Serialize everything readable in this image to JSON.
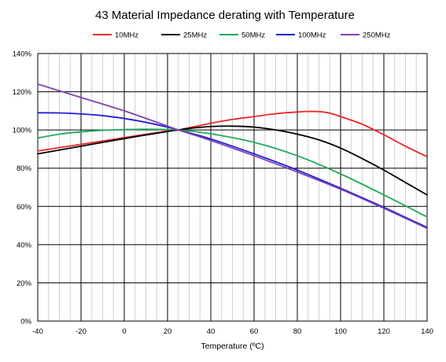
{
  "chart_data": {
    "type": "line",
    "title": "43 Material Impedance derating with Temperature",
    "xlabel": "Temperature (ºC)",
    "ylabel": "",
    "xlim": [
      -40,
      140
    ],
    "ylim": [
      0,
      140
    ],
    "x_ticks": [
      -40,
      -20,
      0,
      20,
      40,
      60,
      80,
      100,
      120,
      140
    ],
    "x_tick_labels": [
      "-40",
      "-20",
      "0",
      "20",
      "40",
      "60",
      "80",
      "100",
      "120",
      "140"
    ],
    "y_ticks": [
      0,
      20,
      40,
      60,
      80,
      100,
      120,
      140
    ],
    "y_tick_labels": [
      "0%",
      "20%",
      "40%",
      "60%",
      "80%",
      "100%",
      "120%",
      "140%"
    ],
    "x_minor_step": 5,
    "grid": true,
    "legend_position": "top",
    "series": [
      {
        "name": "10MHz",
        "color": "#e8282a",
        "x": [
          -40,
          -20,
          0,
          20,
          25,
          40,
          50,
          60,
          70,
          80,
          85,
          90,
          95,
          100,
          110,
          120,
          130,
          140
        ],
        "y": [
          89,
          92.5,
          96,
          99.5,
          100,
          103.5,
          105.5,
          107,
          108.5,
          109.4,
          109.7,
          109.6,
          108.8,
          107,
          103,
          97.5,
          91.5,
          86
        ]
      },
      {
        "name": "25MHz",
        "color": "#000000",
        "x": [
          -40,
          -20,
          0,
          20,
          25,
          30,
          40,
          50,
          60,
          70,
          80,
          90,
          100,
          110,
          120,
          130,
          140
        ],
        "y": [
          87.5,
          91.5,
          95.5,
          99.2,
          100,
          100.8,
          101.8,
          102,
          101.5,
          100,
          97.8,
          94.8,
          90.5,
          85,
          79,
          72.5,
          66
        ]
      },
      {
        "name": "50MHz",
        "color": "#1faa59",
        "x": [
          -40,
          -30,
          -20,
          -10,
          0,
          10,
          20,
          25,
          40,
          60,
          80,
          100,
          120,
          140
        ],
        "y": [
          95.8,
          97.8,
          99,
          99.8,
          100.2,
          100.4,
          100.2,
          100,
          98,
          93.5,
          86.5,
          77,
          66,
          54.5
        ]
      },
      {
        "name": "100MHz",
        "color": "#1f1fd6",
        "x": [
          -40,
          -30,
          -20,
          -10,
          0,
          10,
          20,
          25,
          40,
          60,
          80,
          100,
          120,
          140
        ],
        "y": [
          109,
          108.9,
          108.4,
          107.5,
          106,
          104,
          101.5,
          100,
          95.3,
          87.5,
          79,
          69.5,
          59.5,
          49
        ]
      },
      {
        "name": "250MHz",
        "color": "#8040b0",
        "x": [
          -40,
          -20,
          0,
          20,
          25,
          40,
          60,
          80,
          100,
          120,
          140
        ],
        "y": [
          124,
          117,
          110,
          102,
          100,
          94.5,
          86.5,
          78,
          69,
          59,
          48.5
        ]
      }
    ]
  }
}
